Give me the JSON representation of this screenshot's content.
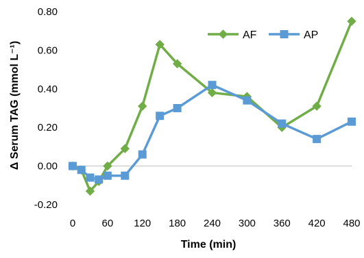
{
  "chart_data": {
    "type": "line",
    "xlabel": "Time (min)",
    "ylabel": "Δ Serum TAG (mmol L⁻¹)",
    "x_ticks": [
      0,
      60,
      120,
      180,
      240,
      300,
      360,
      420,
      480
    ],
    "y_ticks": [
      -0.2,
      0.0,
      0.2,
      0.4,
      0.6,
      0.8
    ],
    "y_tick_labels": [
      "-0.20",
      "0.00",
      "0.20",
      "0.40",
      "0.60",
      "0.80"
    ],
    "xlim": [
      0,
      480
    ],
    "ylim": [
      -0.2,
      0.8
    ],
    "grid": false,
    "legend_position": "top-right",
    "series": [
      {
        "name": "AF",
        "color": "#70AD47",
        "marker": "diamond",
        "x": [
          0,
          15,
          30,
          45,
          60,
          90,
          120,
          150,
          180,
          240,
          300,
          360,
          420,
          480
        ],
        "y": [
          0.0,
          -0.02,
          -0.13,
          -0.08,
          0.0,
          0.09,
          0.31,
          0.63,
          0.53,
          0.38,
          0.36,
          0.2,
          0.31,
          0.75
        ]
      },
      {
        "name": "AP",
        "color": "#5B9BD5",
        "marker": "square",
        "x": [
          0,
          15,
          30,
          45,
          60,
          90,
          120,
          150,
          180,
          240,
          300,
          360,
          420,
          480
        ],
        "y": [
          0.0,
          -0.02,
          -0.06,
          -0.07,
          -0.05,
          -0.05,
          0.06,
          0.26,
          0.3,
          0.42,
          0.34,
          0.22,
          0.14,
          0.23
        ]
      }
    ]
  }
}
